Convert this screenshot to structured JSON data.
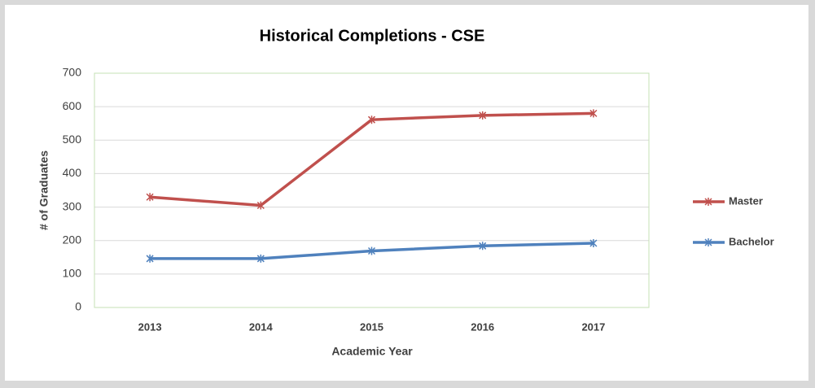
{
  "chart_data": {
    "type": "line",
    "title": "Historical Completions - CSE",
    "xlabel": "Academic Year",
    "ylabel": "# of Graduates",
    "categories": [
      "2013",
      "2014",
      "2015",
      "2016",
      "2017"
    ],
    "series": [
      {
        "name": "Master",
        "color": "#c0504d",
        "values": [
          330,
          305,
          561,
          574,
          580
        ]
      },
      {
        "name": "Bachelor",
        "color": "#4f81bd",
        "values": [
          146,
          146,
          169,
          184,
          192
        ]
      }
    ],
    "ylim": [
      0,
      700
    ],
    "yticks": [
      0,
      100,
      200,
      300,
      400,
      500,
      600,
      700
    ],
    "grid": true,
    "legend": "right"
  }
}
